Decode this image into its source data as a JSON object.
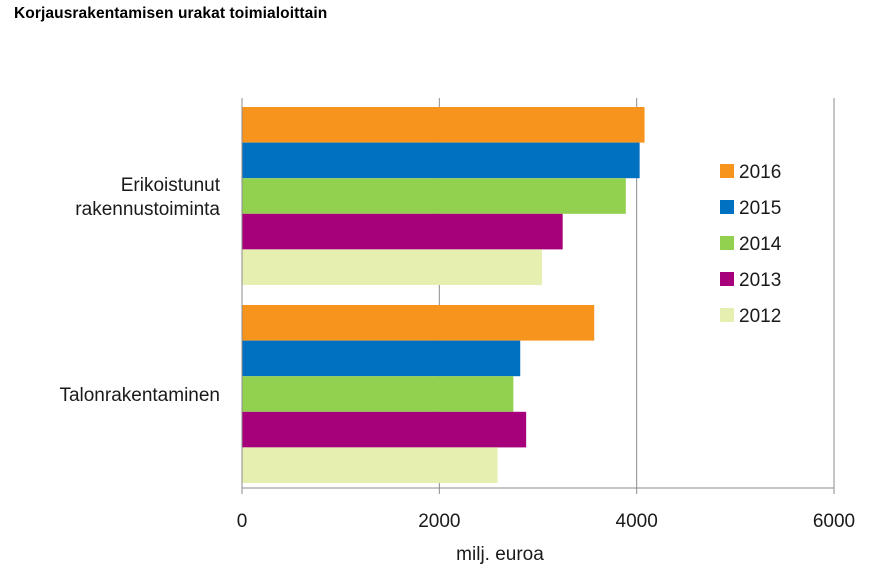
{
  "title": "Korjausrakentamisen urakat toimialoittain",
  "chart_data": {
    "type": "bar",
    "orientation": "horizontal",
    "title": "Korjausrakentamisen urakat toimialoittain",
    "categories": [
      [
        "Erikoistunut",
        "rakennustoiminta"
      ],
      [
        "Talonrakentaminen"
      ]
    ],
    "series": [
      {
        "name": "2016",
        "color": "#f7941d",
        "values": [
          4080,
          3570
        ]
      },
      {
        "name": "2015",
        "color": "#0070c0",
        "values": [
          4030,
          2820
        ]
      },
      {
        "name": "2014",
        "color": "#92d050",
        "values": [
          3890,
          2750
        ]
      },
      {
        "name": "2013",
        "color": "#a6007a",
        "values": [
          3250,
          2880
        ]
      },
      {
        "name": "2012",
        "color": "#e6efb0",
        "values": [
          3040,
          2590
        ]
      }
    ],
    "xlabel": "milj. euroa",
    "ylabel": "",
    "xlim": [
      0,
      6000
    ],
    "xticks": [
      "0",
      "2000",
      "4000",
      "6000"
    ],
    "grid": "vertical",
    "legend_position": "right"
  }
}
